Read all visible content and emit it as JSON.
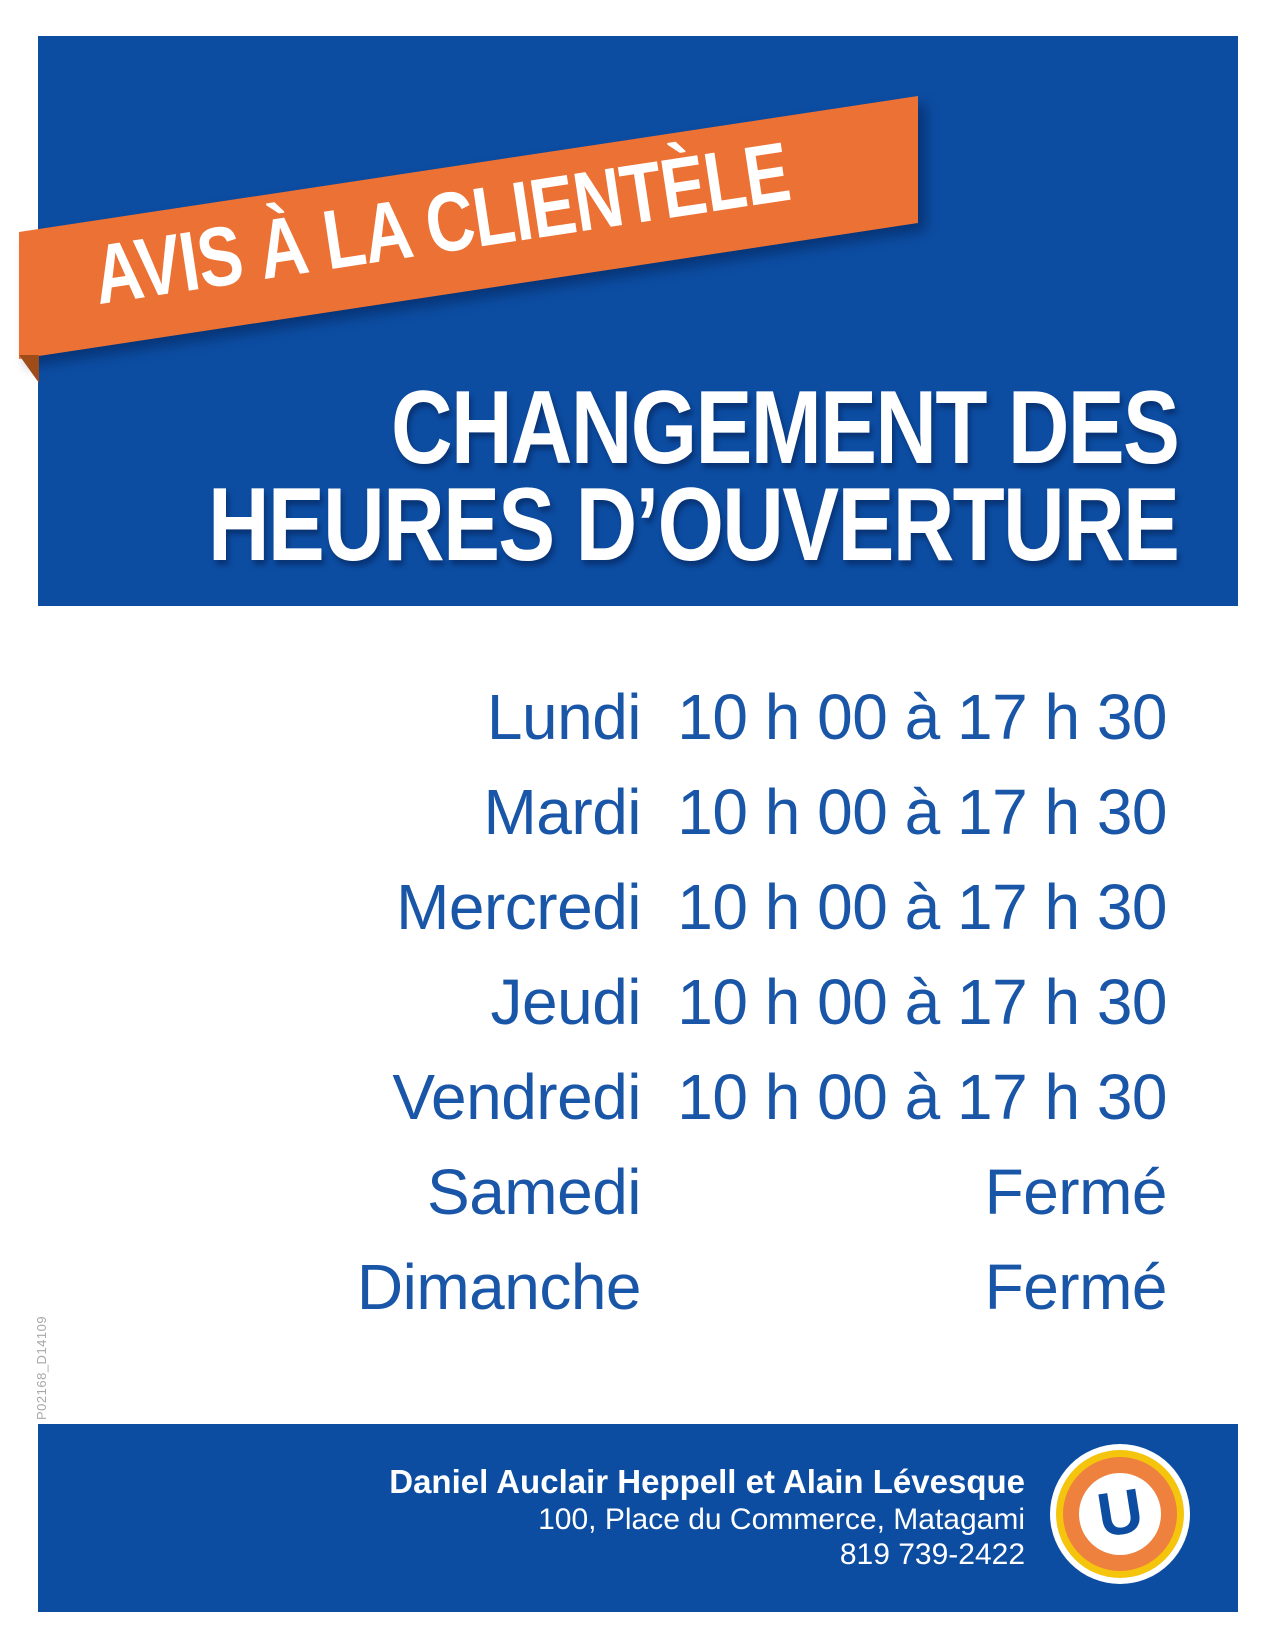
{
  "notice": {
    "banner_label": "AVIS À LA CLIENTÈLE",
    "title_line1": "CHANGEMENT DES",
    "title_line2": "HEURES D’OUVERTURE"
  },
  "schedule": {
    "rows": [
      {
        "day": "Lundi",
        "hours": "10 h 00 à 17 h 30"
      },
      {
        "day": "Mardi",
        "hours": "10 h 00 à 17 h 30"
      },
      {
        "day": "Mercredi",
        "hours": "10 h 00 à 17 h 30"
      },
      {
        "day": "Jeudi",
        "hours": "10 h 00 à 17 h 30"
      },
      {
        "day": "Vendredi",
        "hours": "10 h 00 à 17 h 30"
      },
      {
        "day": "Samedi",
        "hours": "Fermé"
      },
      {
        "day": "Dimanche",
        "hours": "Fermé"
      }
    ]
  },
  "footer": {
    "owners": "Daniel Auclair Heppell et Alain Lévesque",
    "address": "100, Place du Commerce, Matagami",
    "phone": "819 739-2422",
    "logo_letter": "U"
  },
  "side_code": "P02168_D14109",
  "colors": {
    "panel_blue": "#0c4da2",
    "text_blue": "#1a56a8",
    "ribbon_orange": "#ec7134",
    "ribbon_fold": "#a04c18",
    "logo_ring_orange": "#ef813f",
    "logo_ring_yellow": "#f5c50d",
    "side_code_gray": "#a8a8ac"
  }
}
